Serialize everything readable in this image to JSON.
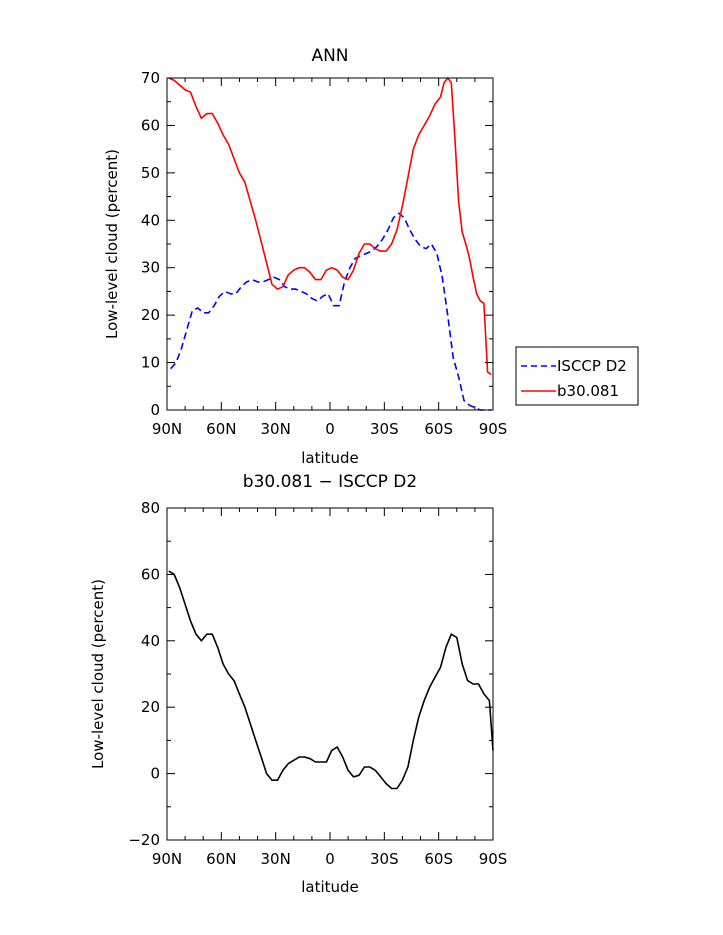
{
  "chart_data": [
    {
      "type": "line",
      "title": "ANN",
      "xlabel": "latitude",
      "ylabel": "Low-level cloud (percent)",
      "xlim": [
        -90,
        90
      ],
      "ylim": [
        0,
        70
      ],
      "x_tick_values": [
        -90,
        -60,
        -30,
        0,
        30,
        60,
        90
      ],
      "x_tick_labels": [
        "90N",
        "60N",
        "30N",
        "0",
        "30S",
        "60S",
        "90S"
      ],
      "y_tick_values": [
        0,
        10,
        20,
        30,
        40,
        50,
        60,
        70
      ],
      "y_tick_labels": [
        "0",
        "10",
        "20",
        "30",
        "40",
        "50",
        "60",
        "70"
      ],
      "grid": false,
      "legend_position": "outside-right",
      "series": [
        {
          "name": "ISCCP D2",
          "color": "#0000ff",
          "dash": "dashed",
          "x": [
            -88,
            -85,
            -82,
            -79,
            -76,
            -73,
            -70,
            -67,
            -64,
            -61,
            -58,
            -55,
            -52,
            -49,
            -46,
            -43,
            -40,
            -37,
            -34,
            -31,
            -28,
            -25,
            -22,
            -19,
            -16,
            -13,
            -10,
            -7,
            -4,
            -1,
            2,
            5,
            8,
            11,
            14,
            17,
            20,
            23,
            26,
            29,
            32,
            35,
            38,
            41,
            44,
            47,
            50,
            53,
            56,
            59,
            62,
            65,
            68,
            71,
            74,
            77,
            80,
            83,
            86,
            89
          ],
          "y": [
            8.7,
            10,
            13,
            17,
            21,
            21.5,
            20.5,
            20.5,
            22,
            24,
            25,
            24.5,
            24.5,
            26,
            27,
            27.5,
            27,
            27,
            27.5,
            28,
            27.5,
            26,
            25.5,
            25.5,
            25,
            24.5,
            23.5,
            23,
            24,
            24.5,
            22,
            22,
            27,
            30,
            32,
            32.5,
            33,
            33.5,
            34.5,
            36,
            38,
            40.5,
            41.5,
            40.5,
            38,
            36,
            34.5,
            34,
            35,
            33,
            28,
            20,
            11,
            7,
            2,
            1,
            0.5,
            0,
            0,
            0
          ]
        },
        {
          "name": "b30.081",
          "color": "#ff0000",
          "dash": "solid",
          "x": [
            -89,
            -86,
            -83,
            -80,
            -77,
            -74,
            -71,
            -68,
            -65,
            -62,
            -59,
            -56,
            -53,
            -50,
            -47,
            -44,
            -41,
            -38,
            -35,
            -32,
            -29,
            -26,
            -23,
            -20,
            -17,
            -14,
            -11,
            -8,
            -5,
            -2,
            1,
            4,
            7,
            10,
            13,
            16,
            19,
            22,
            25,
            28,
            31,
            34,
            37,
            40,
            43,
            46,
            49,
            52,
            55,
            58,
            61,
            63,
            65,
            67,
            69,
            71,
            73,
            75,
            77,
            79,
            81,
            83,
            85,
            87,
            89
          ],
          "y": [
            70,
            69.5,
            68.5,
            67.5,
            67,
            64,
            61.5,
            62.5,
            62.5,
            60.5,
            58,
            56,
            53,
            50,
            48,
            44,
            40,
            35.5,
            31,
            26.5,
            25.5,
            26,
            28.5,
            29.5,
            30,
            30,
            29,
            27.5,
            27.5,
            29.5,
            30,
            29.5,
            28,
            27.5,
            29.5,
            33,
            35,
            35,
            34,
            33.5,
            33.5,
            35,
            38,
            43,
            49,
            55,
            58,
            60,
            62,
            64.5,
            66,
            69,
            70,
            69,
            57,
            44,
            37.5,
            35,
            32,
            28,
            24.5,
            23,
            22.5,
            8,
            7.5
          ]
        }
      ]
    },
    {
      "type": "line",
      "title": "b30.081 − ISCCP D2",
      "xlabel": "latitude",
      "ylabel": "Low-level cloud (percent)",
      "xlim": [
        -90,
        90
      ],
      "ylim": [
        -20,
        80
      ],
      "x_tick_values": [
        -90,
        -60,
        -30,
        0,
        30,
        60,
        90
      ],
      "x_tick_labels": [
        "90N",
        "60N",
        "30N",
        "0",
        "30S",
        "60S",
        "90S"
      ],
      "y_tick_values": [
        -20,
        0,
        20,
        40,
        60,
        80
      ],
      "y_tick_labels": [
        "−20",
        "0",
        "20",
        "40",
        "60",
        "80"
      ],
      "grid": false,
      "series": [
        {
          "color": "#000000",
          "dash": "solid",
          "x": [
            -89,
            -86,
            -83,
            -80,
            -77,
            -74,
            -71,
            -68,
            -65,
            -62,
            -59,
            -56,
            -53,
            -50,
            -47,
            -44,
            -41,
            -38,
            -35,
            -32,
            -29,
            -26,
            -23,
            -20,
            -17,
            -14,
            -11,
            -8,
            -5,
            -2,
            1,
            4,
            7,
            10,
            13,
            16,
            19,
            22,
            25,
            28,
            31,
            34,
            37,
            40,
            43,
            46,
            49,
            52,
            55,
            58,
            61,
            64,
            67,
            70,
            73,
            76,
            79,
            82,
            85,
            88,
            90
          ],
          "y": [
            61,
            60,
            56,
            51,
            46,
            42,
            40,
            42,
            42,
            38,
            33,
            30,
            28,
            24,
            20,
            15,
            10,
            5,
            0,
            -2,
            -2,
            1,
            3,
            4,
            5,
            5,
            4.5,
            3.5,
            3.5,
            3.5,
            7,
            8,
            5,
            1,
            -1,
            -0.5,
            2,
            2,
            1,
            -1,
            -3,
            -4.5,
            -4.5,
            -2,
            2,
            10,
            17,
            22,
            26,
            29,
            32,
            38,
            42,
            41,
            33,
            28,
            27,
            27,
            24,
            22,
            7
          ]
        }
      ]
    }
  ]
}
